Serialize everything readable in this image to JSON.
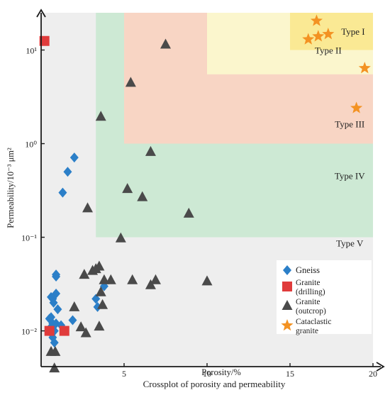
{
  "chart_data": {
    "type": "scatter",
    "title": "Crossplot of porosity and permeability",
    "xlabel": "Porosity/%",
    "ylabel": "Permeability/10⁻³ μm²",
    "x_scale": "linear",
    "y_scale": "log",
    "xlim": [
      0,
      20
    ],
    "ylim": [
      0.00415,
      25
    ],
    "x_ticks": [
      {
        "value": 5,
        "label": "5"
      },
      {
        "value": 10,
        "label": "10"
      },
      {
        "value": 15,
        "label": "15"
      },
      {
        "value": 20,
        "label": "20"
      }
    ],
    "y_ticks": [
      {
        "value": 0.01,
        "label": "10⁻²"
      },
      {
        "value": 0.1,
        "label": "10⁻¹"
      },
      {
        "value": 1,
        "label": "10⁰"
      },
      {
        "value": 10,
        "label": "10¹"
      }
    ],
    "regions": [
      {
        "label": "Type V",
        "x": [
          0,
          20
        ],
        "y": [
          0.00415,
          25
        ],
        "color": "#eeeeee",
        "label_at": [
          18.6,
          0.08
        ]
      },
      {
        "label": "Type IV",
        "x": [
          3.3,
          20
        ],
        "y": [
          0.1,
          25
        ],
        "color": "#cde9d4",
        "label_at": [
          18.6,
          0.42
        ]
      },
      {
        "label": "Type III",
        "x": [
          5,
          20
        ],
        "y": [
          1,
          25
        ],
        "color": "#f8d5c4",
        "label_at": [
          18.6,
          1.5
        ]
      },
      {
        "label": "Type II",
        "x": [
          10,
          20
        ],
        "y": [
          5.5,
          25
        ],
        "color": "#fbf6cd",
        "label_at": [
          17.3,
          9.2
        ]
      },
      {
        "label": "Type I",
        "x": [
          15,
          20
        ],
        "y": [
          10,
          25
        ],
        "color": "#fae994",
        "label_at": [
          18.8,
          14.5
        ]
      }
    ],
    "series": [
      {
        "name": "Gneiss",
        "marker": "diamond",
        "color": "#2b7fc8",
        "points": [
          [
            2.0,
            0.71
          ],
          [
            1.6,
            0.5
          ],
          [
            1.3,
            0.3
          ],
          [
            0.9,
            0.04
          ],
          [
            0.9,
            0.038
          ],
          [
            0.9,
            0.025
          ],
          [
            0.6,
            0.023
          ],
          [
            0.7,
            0.022
          ],
          [
            0.75,
            0.02
          ],
          [
            3.3,
            0.022
          ],
          [
            3.4,
            0.018
          ],
          [
            3.8,
            0.03
          ],
          [
            1.0,
            0.017
          ],
          [
            0.6,
            0.014
          ],
          [
            0.5,
            0.0135
          ],
          [
            1.9,
            0.013
          ],
          [
            0.7,
            0.012
          ],
          [
            0.9,
            0.012
          ],
          [
            1.2,
            0.0115
          ],
          [
            0.5,
            0.0105
          ],
          [
            0.8,
            0.01
          ],
          [
            0.6,
            0.0095
          ],
          [
            0.7,
            0.0085
          ],
          [
            0.8,
            0.0075
          ]
        ]
      },
      {
        "name": "Granite (drilling)",
        "marker": "square",
        "color": "#e03b3b",
        "points": [
          [
            0.2,
            12.5
          ],
          [
            0.5,
            0.01
          ],
          [
            1.4,
            0.01
          ]
        ]
      },
      {
        "name": "Granite (outcrop)",
        "marker": "triangle",
        "color": "#4a4a4a",
        "points": [
          [
            7.5,
            11.5
          ],
          [
            5.4,
            4.5
          ],
          [
            3.6,
            1.95
          ],
          [
            6.6,
            0.82
          ],
          [
            5.2,
            0.33
          ],
          [
            6.1,
            0.27
          ],
          [
            2.8,
            0.205
          ],
          [
            8.9,
            0.18
          ],
          [
            4.8,
            0.098
          ],
          [
            3.3,
            0.046
          ],
          [
            3.5,
            0.049
          ],
          [
            2.6,
            0.04
          ],
          [
            3.1,
            0.044
          ],
          [
            4.2,
            0.035
          ],
          [
            3.8,
            0.035
          ],
          [
            5.5,
            0.035
          ],
          [
            6.9,
            0.035
          ],
          [
            6.6,
            0.031
          ],
          [
            10.0,
            0.034
          ],
          [
            3.6,
            0.026
          ],
          [
            3.7,
            0.019
          ],
          [
            2.0,
            0.018
          ],
          [
            3.5,
            0.0112
          ],
          [
            2.4,
            0.011
          ],
          [
            2.7,
            0.0095
          ],
          [
            0.6,
            0.006
          ],
          [
            0.85,
            0.006
          ],
          [
            0.8,
            0.004
          ]
        ]
      },
      {
        "name": "Cataclastic granite",
        "marker": "star",
        "color": "#f39222",
        "points": [
          [
            16.6,
            20.5
          ],
          [
            16.7,
            14.0
          ],
          [
            17.3,
            14.8
          ],
          [
            16.1,
            13.0
          ],
          [
            19.5,
            6.4
          ],
          [
            19.0,
            2.4
          ]
        ]
      }
    ],
    "legend": {
      "position": "bottom-right",
      "entries": [
        {
          "marker": "diamond",
          "color": "#2b7fc8",
          "lines": [
            "Gneiss"
          ]
        },
        {
          "marker": "square",
          "color": "#e03b3b",
          "lines": [
            "Granite",
            "(drilling)"
          ]
        },
        {
          "marker": "triangle",
          "color": "#4a4a4a",
          "lines": [
            "Granite",
            "(outcrop)"
          ]
        },
        {
          "marker": "star",
          "color": "#f39222",
          "lines": [
            "Cataclastic",
            "granite"
          ]
        }
      ]
    }
  }
}
